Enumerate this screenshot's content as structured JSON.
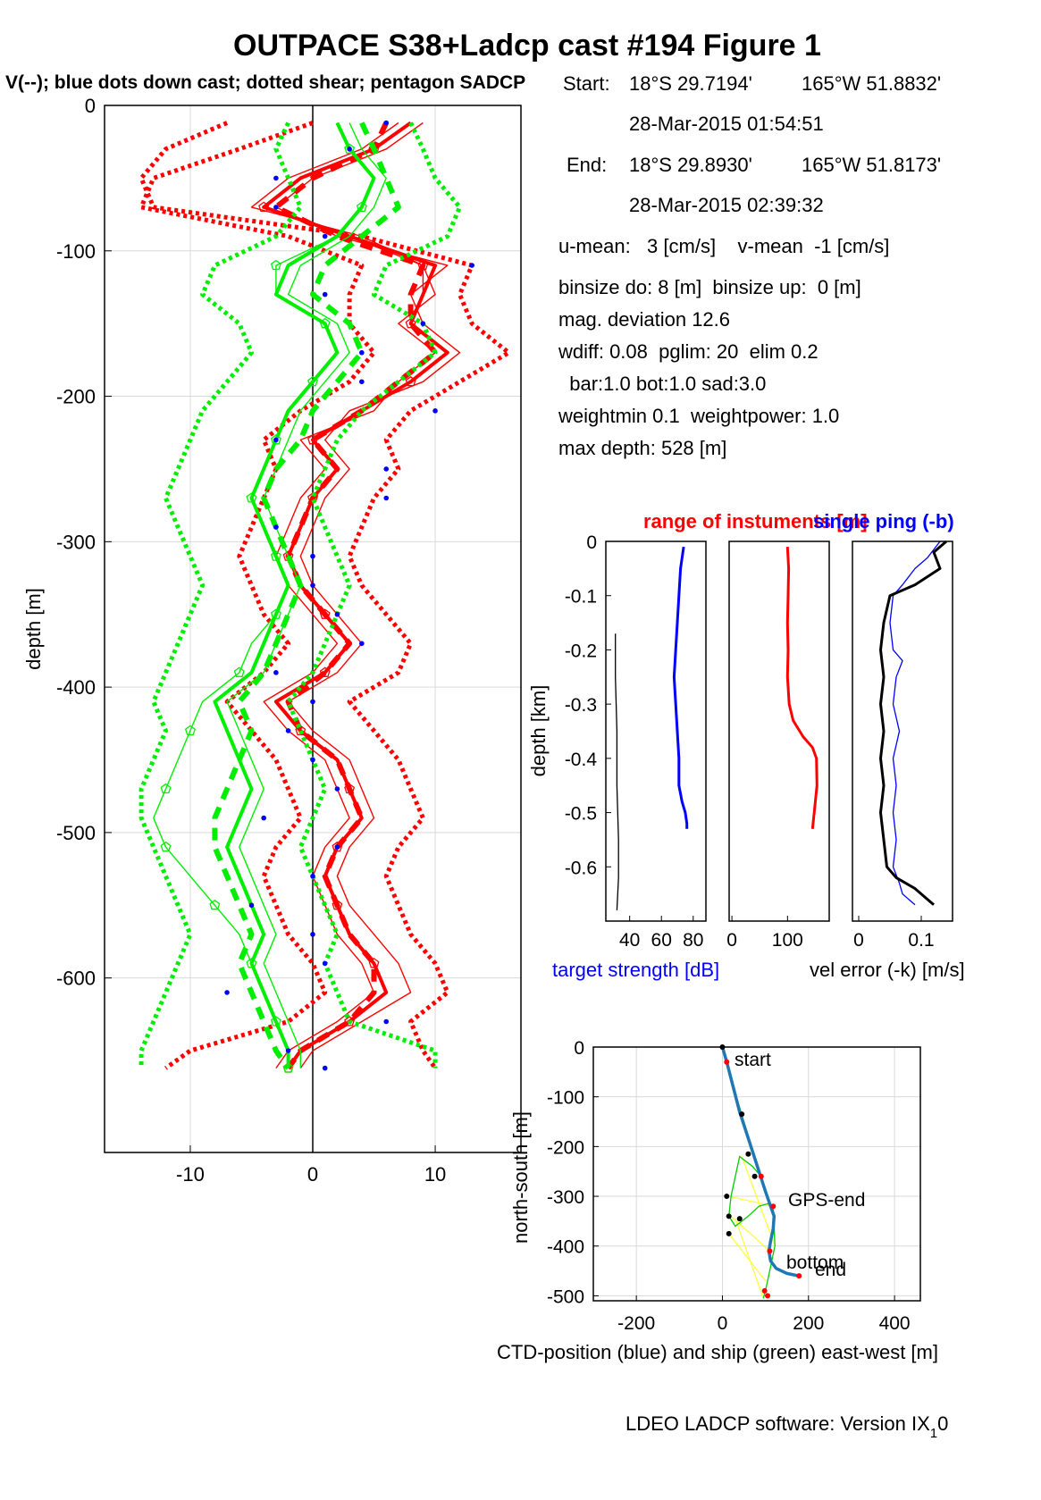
{
  "figure": {
    "title": "OUTPACE S38+Ladcp cast #194  Figure 1",
    "footer": "LDEO LADCP software: Version IX",
    "footer_sub": "1",
    "footer_tail": "0"
  },
  "info": {
    "start_label": "Start:",
    "start_lat": "18°S 29.7194'",
    "start_lon": "165°W 51.8832'",
    "start_time": "28-Mar-2015 01:54:51",
    "end_label": "End:",
    "end_lat": "18°S 29.8930'",
    "end_lon": "165°W 51.8173'",
    "end_time": "28-Mar-2015 02:39:32",
    "lines": [
      "u-mean:   3 [cm/s]    v-mean  -1 [cm/s]",
      "binsize do: 8 [m]  binsize up:  0 [m]",
      "mag. deviation 12.6",
      "wdiff: 0.08  pglim: 20  elim 0.2",
      "  bar:1.0 bot:1.0 sad:3.0",
      "weightmin 0.1  weightpower: 1.0",
      "max depth: 528 [m]"
    ]
  },
  "colors": {
    "u": "#ff0000",
    "v": "#00ee00",
    "dots": "#0000ff",
    "black": "#000000",
    "grid": "#d9d9d9",
    "ctd": "#1f77b4",
    "ship": "#00cc00",
    "link": "#ffff33"
  },
  "chart_data": [
    {
      "id": "velocity-profile",
      "type": "line",
      "title": "V(--); blue dots down cast; dotted shear; pentagon SADCP",
      "xlabel": "",
      "ylabel": "depth [m]",
      "xlim": [
        -17,
        17
      ],
      "ylim": [
        -720,
        0
      ],
      "xticks": [
        -10,
        0,
        10
      ],
      "yticks": [
        0,
        -100,
        -200,
        -300,
        -400,
        -500,
        -600
      ],
      "grid": true,
      "depth": [
        -12,
        -30,
        -50,
        -70,
        -90,
        -110,
        -130,
        -150,
        -170,
        -190,
        -210,
        -230,
        -250,
        -270,
        -290,
        -310,
        -330,
        -350,
        -370,
        -390,
        -410,
        -430,
        -450,
        -470,
        -490,
        -510,
        -530,
        -550,
        -570,
        -590,
        -610,
        -630,
        -650,
        -662
      ],
      "series": [
        {
          "component": "u",
          "style": "solid-thick",
          "values": [
            8,
            5,
            -1,
            -4,
            3,
            10,
            9,
            8,
            11,
            8,
            4,
            0,
            2,
            0,
            -1,
            -2,
            -1,
            1,
            3,
            1,
            -3,
            -1,
            2,
            3,
            4,
            2,
            1,
            2,
            3,
            5,
            6,
            3,
            -1,
            -2
          ]
        },
        {
          "component": "u",
          "style": "solid-thin-1",
          "values": [
            9,
            6,
            0,
            -3,
            2,
            11,
            8,
            9,
            12,
            9,
            3,
            1,
            3,
            1,
            0,
            -1,
            0,
            2,
            4,
            2,
            -2,
            0,
            3,
            4,
            5,
            3,
            2,
            3,
            5,
            7,
            8,
            4,
            0,
            -1
          ]
        },
        {
          "component": "u",
          "style": "solid-thin-2",
          "values": [
            7,
            4,
            -2,
            -5,
            4,
            9,
            10,
            7,
            10,
            7,
            5,
            -1,
            1,
            -1,
            -2,
            -3,
            -2,
            0,
            2,
            0,
            -4,
            -2,
            1,
            2,
            3,
            1,
            0,
            1,
            2,
            4,
            5,
            2,
            -2,
            -3
          ]
        },
        {
          "component": "u",
          "style": "dash-thick",
          "values": [
            6,
            5,
            0,
            -3,
            2,
            9,
            8,
            8,
            10,
            7,
            4,
            0,
            2,
            0,
            -1,
            -2,
            -1,
            1,
            3,
            1,
            -2,
            -1,
            2,
            3,
            4,
            2,
            1,
            2,
            3,
            5,
            5,
            3,
            -1,
            -2
          ]
        },
        {
          "component": "u",
          "style": "dotted-shear-right",
          "values": [
            -7,
            -12,
            -14,
            -13,
            4,
            13,
            12,
            13,
            16,
            12,
            8,
            6,
            7,
            5,
            4,
            3,
            4,
            6,
            8,
            7,
            3,
            5,
            7,
            8,
            9,
            7,
            6,
            7,
            8,
            10,
            11,
            8,
            9,
            10
          ]
        },
        {
          "component": "u",
          "style": "dotted-shear-left",
          "values": [
            0,
            -6,
            -13,
            -14,
            -2,
            4,
            3,
            3,
            5,
            3,
            -1,
            -4,
            -3,
            -4,
            -5,
            -6,
            -5,
            -4,
            -2,
            -4,
            -7,
            -5,
            -3,
            -2,
            -1,
            -3,
            -4,
            -3,
            -2,
            0,
            1,
            -2,
            -10,
            -12
          ]
        },
        {
          "component": "u",
          "style": "pentagon-sadcp",
          "values": [
            8,
            5,
            -1,
            -4,
            3,
            9,
            9,
            8,
            11,
            8,
            4,
            0,
            2,
            0,
            -1,
            -2,
            -1,
            1,
            3,
            1,
            -3,
            -1,
            2,
            3,
            4,
            2,
            1,
            2,
            3,
            5,
            6,
            3,
            -1,
            -2
          ]
        },
        {
          "component": "v",
          "style": "solid-thick",
          "values": [
            2,
            3,
            5,
            4,
            2,
            -2,
            -3,
            1,
            2,
            0,
            -2,
            -3,
            -4,
            -5,
            -4,
            -3,
            -2,
            -3,
            -4,
            -5,
            -8,
            -7,
            -6,
            -5,
            -6,
            -7,
            -6,
            -5,
            -4,
            -5,
            -4,
            -3,
            -2,
            -2
          ]
        },
        {
          "component": "v",
          "style": "solid-thin",
          "values": [
            3,
            4,
            6,
            5,
            3,
            -1,
            -2,
            2,
            3,
            1,
            -1,
            -2,
            -3,
            -4,
            -3,
            -2,
            -1,
            -2,
            -3,
            -4,
            -7,
            -6,
            -5,
            -4,
            -5,
            -6,
            -5,
            -4,
            -3,
            -4,
            -3,
            -2,
            -1,
            -1
          ]
        },
        {
          "component": "v",
          "style": "dash-thick",
          "values": [
            4,
            5,
            6,
            7,
            4,
            1,
            0,
            3,
            4,
            2,
            0,
            -1,
            -3,
            -4,
            -3,
            -2,
            -1,
            -2,
            -3,
            -4,
            -6,
            -5,
            -6,
            -7,
            -8,
            -8,
            -7,
            -6,
            -5,
            -6,
            -5,
            -4,
            -3,
            -2
          ]
        },
        {
          "component": "v",
          "style": "dotted-shear-right",
          "values": [
            8,
            9,
            10,
            12,
            11,
            6,
            5,
            9,
            10,
            7,
            4,
            2,
            1,
            0,
            1,
            2,
            3,
            2,
            1,
            0,
            -2,
            -1,
            0,
            1,
            0,
            -1,
            0,
            1,
            2,
            1,
            2,
            3,
            10,
            10
          ]
        },
        {
          "component": "v",
          "style": "dotted-shear-left",
          "values": [
            -2,
            -3,
            -2,
            -1,
            -3,
            -8,
            -9,
            -6,
            -5,
            -7,
            -9,
            -10,
            -11,
            -12,
            -11,
            -10,
            -9,
            -10,
            -11,
            -12,
            -13,
            -12,
            -13,
            -14,
            -14,
            -13,
            -12,
            -11,
            -10,
            -11,
            -12,
            -13,
            -14,
            -14
          ]
        },
        {
          "component": "v",
          "style": "pentagon-sadcp",
          "values": [
            2,
            3,
            5,
            4,
            2,
            -3,
            -3,
            1,
            2,
            0,
            -2,
            -3,
            -4,
            -5,
            -4,
            -3,
            -2,
            -3,
            -5,
            -6,
            -9,
            -10,
            -11,
            -12,
            -13,
            -12,
            -10,
            -8,
            -6,
            -5,
            -4,
            -3,
            -2,
            -2
          ]
        },
        {
          "component": "dots",
          "style": "blue-dots-downcast",
          "values": [
            6,
            3,
            -3,
            -3,
            1,
            13,
            1,
            9,
            4,
            4,
            10,
            -3,
            6,
            6,
            -3,
            0,
            0,
            2,
            4,
            -3,
            0,
            -2,
            0,
            2,
            -4,
            2,
            0,
            -5,
            0,
            1,
            -7,
            6,
            -2,
            1
          ]
        }
      ]
    },
    {
      "id": "target-strength",
      "type": "line",
      "title": "range of instuments [m]",
      "xlabel": "target strength [dB]",
      "ylabel": "depth [km]",
      "xlim": [
        25,
        88
      ],
      "ylim": [
        -0.7,
        0
      ],
      "xticks": [
        40,
        60,
        80
      ],
      "yticks": [
        0,
        -0.1,
        -0.2,
        -0.3,
        -0.4,
        -0.5,
        -0.6
      ],
      "grid": false,
      "series": [
        {
          "name": "",
          "color": "blue",
          "depth": [
            -0.01,
            -0.05,
            -0.1,
            -0.15,
            -0.2,
            -0.25,
            -0.3,
            -0.35,
            -0.4,
            -0.45,
            -0.48,
            -0.5,
            -0.52,
            -0.53
          ],
          "values": [
            74,
            72,
            71,
            70,
            69,
            68,
            69,
            70,
            71,
            71,
            73,
            75,
            76,
            76
          ]
        },
        {
          "name": "",
          "color": "black",
          "depth": [
            -0.17,
            -0.25,
            -0.35,
            -0.45,
            -0.55,
            -0.62,
            -0.68
          ],
          "values": [
            31,
            31,
            32,
            32,
            33,
            33,
            32
          ]
        }
      ]
    },
    {
      "id": "instrument-range",
      "type": "line",
      "xlabel": "",
      "ylabel": "",
      "xlim": [
        -5,
        175
      ],
      "ylim": [
        -0.7,
        0
      ],
      "xticks": [
        0,
        100
      ],
      "grid": false,
      "series": [
        {
          "name": "",
          "color": "red",
          "depth": [
            -0.01,
            -0.05,
            -0.1,
            -0.15,
            -0.2,
            -0.25,
            -0.3,
            -0.33,
            -0.36,
            -0.38,
            -0.4,
            -0.45,
            -0.5,
            -0.53
          ],
          "values": [
            100,
            102,
            101,
            100,
            101,
            100,
            103,
            110,
            128,
            145,
            152,
            153,
            148,
            145
          ]
        }
      ]
    },
    {
      "id": "velocity-error",
      "type": "line",
      "title": "single ping (-b)",
      "xlabel": "vel error (-k) [m/s]",
      "ylabel": "",
      "xlim": [
        -0.01,
        0.15
      ],
      "ylim": [
        -0.7,
        0
      ],
      "xticks": [
        0,
        0.1
      ],
      "grid": false,
      "series": [
        {
          "name": "",
          "color": "blue",
          "depth": [
            -0.0,
            -0.03,
            -0.05,
            -0.08,
            -0.1,
            -0.15,
            -0.2,
            -0.22,
            -0.25,
            -0.3,
            -0.35,
            -0.4,
            -0.45,
            -0.5,
            -0.55,
            -0.6,
            -0.63,
            -0.65,
            -0.67
          ],
          "values": [
            0.13,
            0.11,
            0.09,
            0.07,
            0.055,
            0.05,
            0.055,
            0.07,
            0.06,
            0.055,
            0.065,
            0.055,
            0.06,
            0.055,
            0.06,
            0.055,
            0.065,
            0.07,
            0.09
          ]
        },
        {
          "name": "",
          "color": "black",
          "depth": [
            -0.0,
            -0.02,
            -0.05,
            -0.08,
            -0.1,
            -0.15,
            -0.2,
            -0.25,
            -0.3,
            -0.35,
            -0.4,
            -0.45,
            -0.5,
            -0.55,
            -0.6,
            -0.62,
            -0.64,
            -0.66,
            -0.67
          ],
          "values": [
            0.14,
            0.12,
            0.13,
            0.09,
            0.05,
            0.04,
            0.035,
            0.04,
            0.035,
            0.04,
            0.035,
            0.04,
            0.035,
            0.04,
            0.045,
            0.06,
            0.09,
            0.11,
            0.12
          ]
        }
      ]
    },
    {
      "id": "position-track",
      "type": "line",
      "xlabel": "CTD-position (blue) and ship (green) east-west [m]",
      "ylabel": "north-south [m]",
      "xlim": [
        -300,
        460
      ],
      "ylim": [
        -510,
        0
      ],
      "xticks": [
        -200,
        0,
        200,
        400
      ],
      "yticks": [
        0,
        -100,
        -200,
        -300,
        -400,
        -500
      ],
      "grid": true,
      "annotations": [
        "start",
        "GPS-end",
        "bottom",
        "end"
      ],
      "series": [
        {
          "name": "",
          "color": "ctd",
          "x": [
            0,
            10,
            25,
            40,
            55,
            70,
            85,
            100,
            112,
            120,
            118,
            112,
            108,
            112,
            125,
            150,
            178
          ],
          "y": [
            0,
            -30,
            -80,
            -130,
            -170,
            -210,
            -250,
            -290,
            -320,
            -340,
            -365,
            -390,
            -410,
            -430,
            -445,
            -455,
            -460
          ]
        },
        {
          "name": "",
          "color": "ship",
          "x": [
            0,
            8,
            25,
            45,
            60,
            75,
            90,
            70,
            40,
            20,
            15,
            30,
            60,
            85,
            105,
            118,
            122,
            110,
            100,
            95
          ],
          "y": [
            0,
            -25,
            -80,
            -135,
            -180,
            -220,
            -260,
            -240,
            -220,
            -300,
            -340,
            -360,
            -340,
            -320,
            -315,
            -320,
            -400,
            -450,
            -490,
            -505
          ]
        },
        {
          "name": "",
          "color": "link",
          "x": [
            15,
            118,
            20,
            110,
            15,
            100,
            30,
            95,
            45,
            122
          ],
          "y": [
            -300,
            -320,
            -340,
            -410,
            -375,
            -470,
            -345,
            -505,
            -220,
            -400
          ]
        }
      ],
      "points": {
        "black": {
          "x": [
            0,
            45,
            60,
            75,
            10,
            15,
            40,
            15
          ],
          "y": [
            0,
            -135,
            -215,
            -260,
            -300,
            -340,
            -345,
            -375
          ]
        },
        "red": {
          "x": [
            10,
            90,
            118,
            110,
            178,
            98,
            105
          ],
          "y": [
            -30,
            -260,
            -320,
            -410,
            -460,
            -490,
            -500
          ]
        }
      }
    }
  ]
}
